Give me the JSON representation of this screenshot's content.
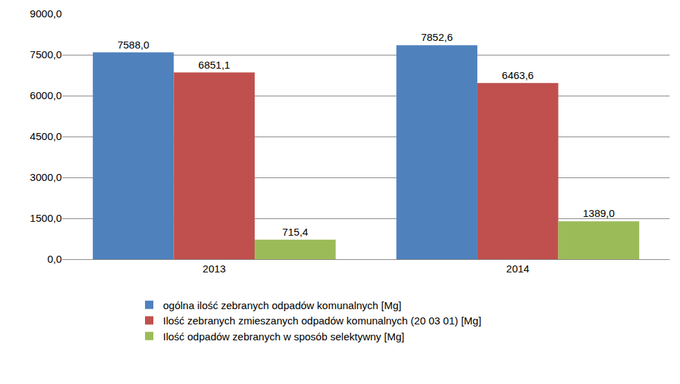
{
  "chart_data": {
    "type": "bar",
    "categories": [
      "2013",
      "2014"
    ],
    "series": [
      {
        "name": "ogólna ilość zebranych odpadów komunalnych [Mg]",
        "color": "#4f81bd",
        "values": [
          7588.0,
          7852.6
        ],
        "value_labels": [
          "7588,0",
          "7852,6"
        ]
      },
      {
        "name": "Ilość zebranych zmieszanych odpadów komunalnych (20 03 01) [Mg]",
        "color": "#c0504d",
        "values": [
          6851.1,
          6463.6
        ],
        "value_labels": [
          "6851,1",
          "6463,6"
        ]
      },
      {
        "name": "Ilość odpadów zebranych w sposób selektywny [Mg]",
        "color": "#9bbb59",
        "values": [
          715.4,
          1389.0
        ],
        "value_labels": [
          "715,4",
          "1389,0"
        ]
      }
    ],
    "ylim": [
      0,
      9000
    ],
    "yticks": [
      {
        "value": 0,
        "label": "0,0"
      },
      {
        "value": 1500,
        "label": "1500,0"
      },
      {
        "value": 3000,
        "label": "3000,0"
      },
      {
        "value": 4500,
        "label": "4500,0"
      },
      {
        "value": 6000,
        "label": "6000,0"
      },
      {
        "value": 7500,
        "label": "7500,0"
      },
      {
        "value": 9000,
        "label": "9000,0"
      }
    ],
    "grid": true,
    "legend": "bottom",
    "data_labels": true
  }
}
